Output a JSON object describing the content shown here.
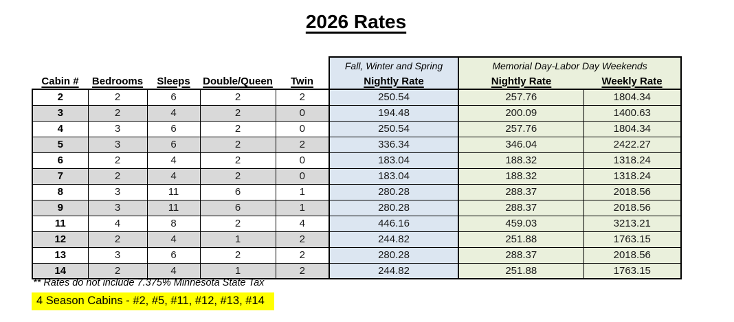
{
  "title": "2026 Rates",
  "table": {
    "left_headers": [
      "Cabin #",
      "Bedrooms",
      "Sleeps",
      "Double/Queen",
      "Twin"
    ],
    "season_groups": [
      {
        "label": "Fall, Winter and Spring",
        "columns": [
          "Nightly Rate"
        ]
      },
      {
        "label": "Memorial Day-Labor Day Weekends",
        "columns": [
          "Nightly Rate",
          "Weekly Rate"
        ]
      }
    ],
    "rows": [
      {
        "cabin": "2",
        "bedrooms": "2",
        "sleeps": "6",
        "double_queen": "2",
        "twin": "2",
        "fws_nightly": "250.54",
        "mdld_nightly": "257.76",
        "mdld_weekly": "1804.34"
      },
      {
        "cabin": "3",
        "bedrooms": "2",
        "sleeps": "4",
        "double_queen": "2",
        "twin": "0",
        "fws_nightly": "194.48",
        "mdld_nightly": "200.09",
        "mdld_weekly": "1400.63"
      },
      {
        "cabin": "4",
        "bedrooms": "3",
        "sleeps": "6",
        "double_queen": "2",
        "twin": "0",
        "fws_nightly": "250.54",
        "mdld_nightly": "257.76",
        "mdld_weekly": "1804.34"
      },
      {
        "cabin": "5",
        "bedrooms": "3",
        "sleeps": "6",
        "double_queen": "2",
        "twin": "2",
        "fws_nightly": "336.34",
        "mdld_nightly": "346.04",
        "mdld_weekly": "2422.27"
      },
      {
        "cabin": "6",
        "bedrooms": "2",
        "sleeps": "4",
        "double_queen": "2",
        "twin": "0",
        "fws_nightly": "183.04",
        "mdld_nightly": "188.32",
        "mdld_weekly": "1318.24"
      },
      {
        "cabin": "7",
        "bedrooms": "2",
        "sleeps": "4",
        "double_queen": "2",
        "twin": "0",
        "fws_nightly": "183.04",
        "mdld_nightly": "188.32",
        "mdld_weekly": "1318.24"
      },
      {
        "cabin": "8",
        "bedrooms": "3",
        "sleeps": "11",
        "double_queen": "6",
        "twin": "1",
        "fws_nightly": "280.28",
        "mdld_nightly": "288.37",
        "mdld_weekly": "2018.56"
      },
      {
        "cabin": "9",
        "bedrooms": "3",
        "sleeps": "11",
        "double_queen": "6",
        "twin": "1",
        "fws_nightly": "280.28",
        "mdld_nightly": "288.37",
        "mdld_weekly": "2018.56"
      },
      {
        "cabin": "11",
        "bedrooms": "4",
        "sleeps": "8",
        "double_queen": "2",
        "twin": "4",
        "fws_nightly": "446.16",
        "mdld_nightly": "459.03",
        "mdld_weekly": "3213.21"
      },
      {
        "cabin": "12",
        "bedrooms": "2",
        "sleeps": "4",
        "double_queen": "1",
        "twin": "2",
        "fws_nightly": "244.82",
        "mdld_nightly": "251.88",
        "mdld_weekly": "1763.15"
      },
      {
        "cabin": "13",
        "bedrooms": "3",
        "sleeps": "6",
        "double_queen": "2",
        "twin": "2",
        "fws_nightly": "280.28",
        "mdld_nightly": "288.37",
        "mdld_weekly": "2018.56"
      },
      {
        "cabin": "14",
        "bedrooms": "2",
        "sleeps": "4",
        "double_queen": "1",
        "twin": "2",
        "fws_nightly": "244.82",
        "mdld_nightly": "251.88",
        "mdld_weekly": "1763.15"
      }
    ]
  },
  "footnotes": {
    "tax_note": "** Rates do not include 7.375% Minnesota State Tax",
    "four_season": "4 Season Cabins - #2, #5, #11, #12, #13, #14"
  },
  "colors": {
    "fws_column_blue": "#dce6f1",
    "mdld_column_green": "#eaf0dc",
    "stripe_gray": "#d9d9d9",
    "highlight_yellow": "#ffff00",
    "border_black": "#000000"
  }
}
